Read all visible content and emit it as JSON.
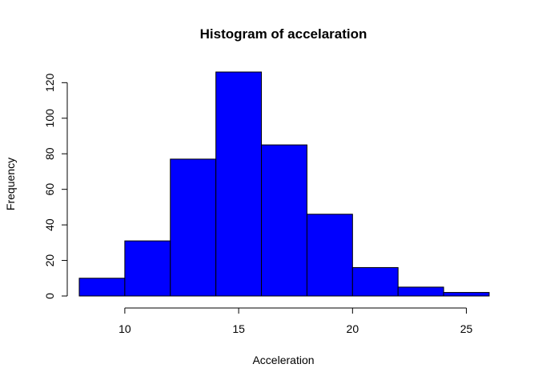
{
  "chart_data": {
    "type": "bar",
    "title": "Histogram of accelaration",
    "xlabel": "Acceleration",
    "ylabel": "Frequency",
    "bins": [
      {
        "start": 8,
        "end": 10,
        "count": 10
      },
      {
        "start": 10,
        "end": 12,
        "count": 31
      },
      {
        "start": 12,
        "end": 14,
        "count": 77
      },
      {
        "start": 14,
        "end": 16,
        "count": 126
      },
      {
        "start": 16,
        "end": 18,
        "count": 85
      },
      {
        "start": 18,
        "end": 20,
        "count": 46
      },
      {
        "start": 20,
        "end": 22,
        "count": 16
      },
      {
        "start": 22,
        "end": 24,
        "count": 5
      },
      {
        "start": 24,
        "end": 26,
        "count": 2
      }
    ],
    "xlim": [
      8,
      26
    ],
    "ylim": [
      0,
      126
    ],
    "x_ticks": [
      10,
      15,
      20,
      25
    ],
    "y_ticks": [
      0,
      20,
      40,
      60,
      80,
      100,
      120
    ],
    "bar_color": "#0000ff",
    "grid": false
  }
}
